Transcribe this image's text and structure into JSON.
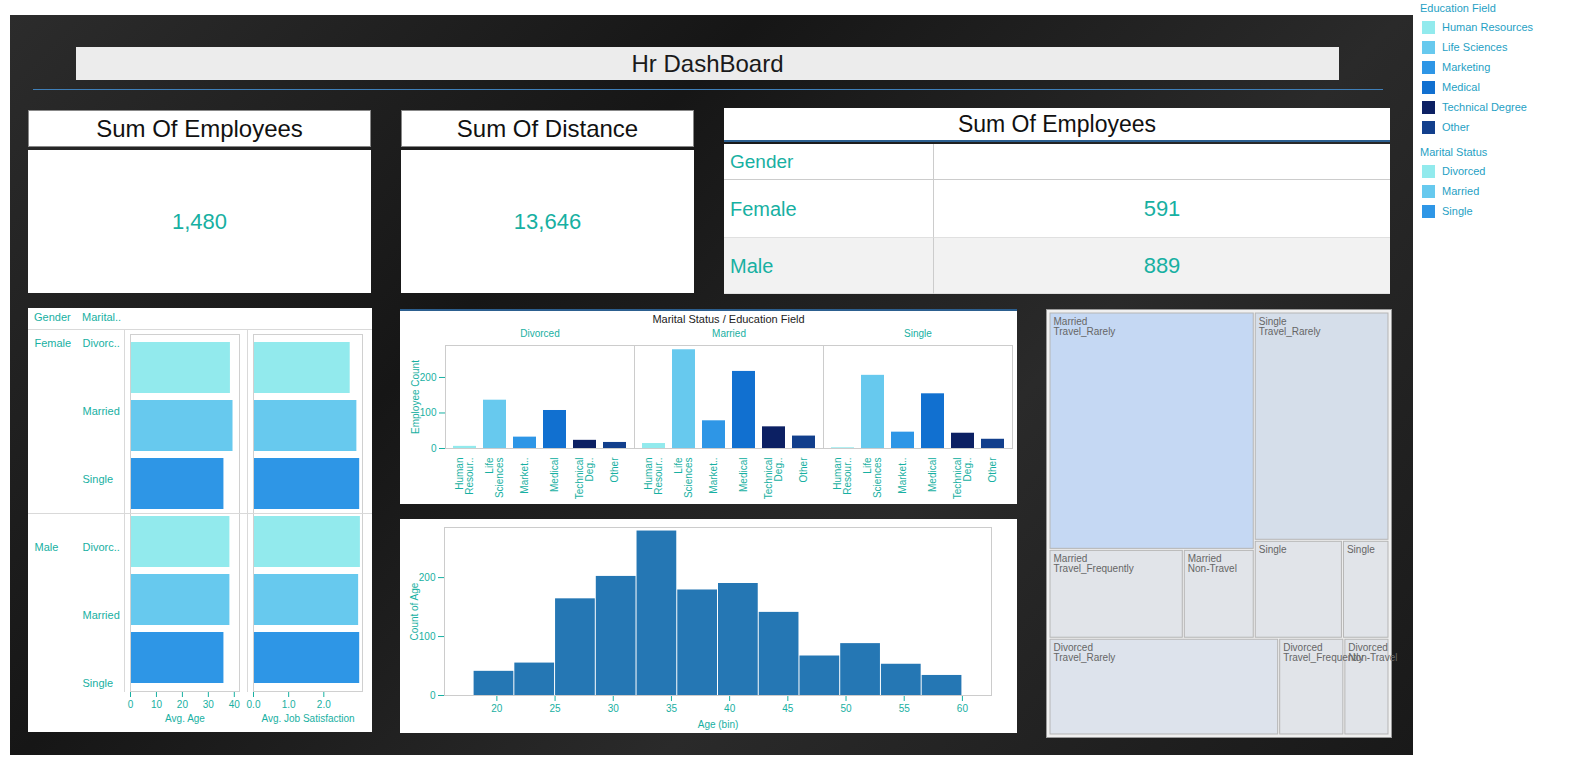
{
  "title": "Hr DashBoard",
  "cards": [
    {
      "title": "Sum Of Employees",
      "value": "1,480"
    },
    {
      "title": "Sum Of Distance",
      "value": "13,646"
    }
  ],
  "table": {
    "title": "Sum Of Employees",
    "header": "Gender",
    "rows": [
      [
        "Female",
        591
      ],
      [
        "Male",
        889
      ]
    ]
  },
  "legends": [
    {
      "title": "Education Field",
      "entries": [
        "Human Resources",
        "Life Sciences",
        "Marketing",
        "Medical",
        "Technical Degree",
        "Other"
      ],
      "colors": [
        "#92eaed",
        "#67c9ee",
        "#2e96e6",
        "#1170d0",
        "#0c2063",
        "#123f8c"
      ]
    },
    {
      "title": "Marital Status",
      "entries": [
        "Divorced",
        "Married",
        "Single"
      ],
      "colors": [
        "#92eaed",
        "#67c9ee",
        "#2e96e6"
      ]
    }
  ],
  "chart_data": [
    {
      "type": "bar",
      "orientation": "horizontal",
      "row_headers": [
        "Gender",
        "Marital.."
      ],
      "gender": [
        "Female",
        null,
        null,
        "Male",
        null,
        null
      ],
      "categories": [
        "Divorc..",
        "Married",
        "Single",
        "Divorc..",
        "Married",
        "Single"
      ],
      "colors": [
        "#92eaed",
        "#67c9ee",
        "#2e96e6",
        "#92eaed",
        "#67c9ee",
        "#2e96e6"
      ],
      "panels": [
        {
          "xlabel": "Avg. Age",
          "values": [
            38.5,
            39.5,
            36.0,
            38.3,
            38.3,
            36.0
          ],
          "xlim": [
            0,
            42
          ],
          "xticks": [
            0,
            10,
            20,
            30,
            40
          ]
        },
        {
          "xlabel": "Avg. Job Satisfaction",
          "values": [
            2.75,
            2.94,
            3.02,
            3.04,
            2.99,
            3.02
          ],
          "xlim": [
            0,
            3.1
          ],
          "xticks": [
            0,
            1,
            2
          ]
        }
      ]
    },
    {
      "type": "bar",
      "title": "Marital Status / Education Field",
      "categories": [
        "Human Resour..",
        "Life Sciences",
        "Market..",
        "Medical",
        "Technical Deg..",
        "Other"
      ],
      "colors": [
        "#92eaed",
        "#67c9ee",
        "#2e96e6",
        "#1170d0",
        "#0c2063",
        "#123f8c"
      ],
      "facets": [
        {
          "name": "Divorced",
          "values": [
            6,
            136,
            32,
            107,
            23,
            17
          ]
        },
        {
          "name": "Married",
          "values": [
            14,
            278,
            78,
            217,
            61,
            35
          ]
        },
        {
          "name": "Single",
          "values": [
            2,
            206,
            46,
            154,
            43,
            26
          ]
        }
      ],
      "ylabel": "Employee Count",
      "ylim": [
        0,
        290
      ],
      "yticks": [
        0,
        100,
        200
      ]
    },
    {
      "type": "histogram",
      "bins": [
        18,
        21.5,
        25,
        28.5,
        32,
        35.5,
        39,
        42.5,
        46,
        49.5,
        53,
        56.5,
        60
      ],
      "values": [
        41,
        55,
        164,
        202,
        279,
        179,
        190,
        141,
        67,
        88,
        53,
        34
      ],
      "color": "#2577b4",
      "xlabel": "Age (bin)",
      "ylabel": "Count of Age",
      "xlim": [
        15.5,
        62.5
      ],
      "xticks": [
        20,
        25,
        30,
        35,
        40,
        45,
        50,
        55,
        60
      ],
      "ylim": [
        0,
        285
      ],
      "yticks": [
        0,
        100,
        200
      ]
    },
    {
      "type": "treemap",
      "items": [
        {
          "group": "Married",
          "labels": [
            "Married",
            "Travel_Rarely"
          ],
          "value": 502,
          "color": "#c5d8f3"
        },
        {
          "group": "Married",
          "labels": [
            "Married",
            "Travel_Frequently"
          ],
          "value": 123,
          "color": "#e1e4e9"
        },
        {
          "group": "Married",
          "labels": [
            "Married",
            "Non-Travel"
          ],
          "value": 65,
          "color": "#e1e4e9"
        },
        {
          "group": "Single",
          "labels": [
            "Single",
            "Travel_Rarely"
          ],
          "value": 317,
          "color": "#d5deea"
        },
        {
          "group": "Single",
          "labels": [
            "Single"
          ],
          "value": 89,
          "color": "#e1e4e9"
        },
        {
          "group": "Single",
          "labels": [
            "Single"
          ],
          "value": 47,
          "color": "#e1e4e9"
        },
        {
          "group": "Divorced",
          "labels": [
            "Divorced",
            "Travel_Rarely"
          ],
          "value": 229,
          "color": "#dde3ec"
        },
        {
          "group": "Divorced",
          "labels": [
            "Divorced",
            "Travel_Frequently"
          ],
          "value": 65,
          "color": "#e1e4e9"
        },
        {
          "group": "Divorced",
          "labels": [
            "Divorced",
            "Non-Travel"
          ],
          "value": 45,
          "color": "#e1e4e9"
        }
      ]
    }
  ]
}
